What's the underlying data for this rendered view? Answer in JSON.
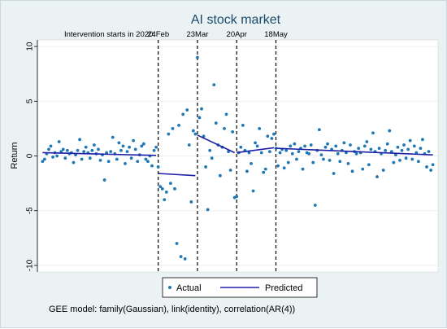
{
  "chart_data": {
    "type": "scatter",
    "title": "AI stock market",
    "xlabel": "",
    "ylabel": "Return",
    "ylim": [
      -10.6,
      10.6
    ],
    "yticks": [
      10,
      5,
      0,
      -5,
      -10
    ],
    "ytick_labels": [
      "10",
      "5",
      "0",
      "-5",
      "-10"
    ],
    "x_range": [
      1,
      190
    ],
    "annotation_prefix": "Intervention starts in 2020:",
    "interventions": [
      {
        "label": "24Feb",
        "x": 57
      },
      {
        "label": "23Mar",
        "x": 76
      },
      {
        "label": "20Apr",
        "x": 95
      },
      {
        "label": "18May",
        "x": 114
      }
    ],
    "series": [
      {
        "name": "Actual",
        "kind": "points",
        "color": "#1f77b4",
        "x": [
          1,
          2,
          3,
          4,
          5,
          6,
          7,
          8,
          9,
          10,
          11,
          12,
          13,
          14,
          15,
          16,
          17,
          18,
          19,
          20,
          21,
          22,
          23,
          24,
          25,
          26,
          27,
          28,
          29,
          30,
          31,
          32,
          33,
          34,
          35,
          36,
          37,
          38,
          39,
          40,
          41,
          42,
          43,
          44,
          45,
          46,
          47,
          48,
          49,
          50,
          51,
          52,
          53,
          54,
          55,
          56,
          57,
          58,
          59,
          60,
          61,
          62,
          63,
          64,
          65,
          66,
          67,
          68,
          69,
          70,
          71,
          72,
          73,
          74,
          75,
          76,
          77,
          78,
          79,
          80,
          81,
          82,
          83,
          84,
          85,
          86,
          87,
          88,
          89,
          90,
          91,
          92,
          93,
          94,
          95,
          96,
          97,
          98,
          99,
          100,
          101,
          102,
          103,
          104,
          105,
          106,
          107,
          108,
          109,
          110,
          111,
          112,
          113,
          114,
          115,
          116,
          117,
          118,
          119,
          120,
          121,
          122,
          123,
          124,
          125,
          126,
          127,
          128,
          129,
          130,
          131,
          132,
          133,
          134,
          135,
          136,
          137,
          138,
          139,
          140,
          141,
          142,
          143,
          144,
          145,
          146,
          147,
          148,
          149,
          150,
          151,
          152,
          153,
          154,
          155,
          156,
          157,
          158,
          159,
          160,
          161,
          162,
          163,
          164,
          165,
          166,
          167,
          168,
          169,
          170,
          171,
          172,
          173,
          174,
          175,
          176,
          177,
          178,
          179,
          180,
          181,
          182,
          183,
          184,
          185,
          186,
          187,
          188,
          189,
          190
        ],
        "y": [
          -0.5,
          -0.3,
          0.2,
          0.6,
          0.9,
          -0.1,
          0.3,
          0.0,
          1.3,
          0.4,
          0.6,
          -0.2,
          0.5,
          0.2,
          0.3,
          -0.6,
          0.1,
          0.5,
          1.5,
          -0.3,
          0.4,
          0.8,
          0.3,
          -0.2,
          0.5,
          1.0,
          0.2,
          0.6,
          -0.4,
          0.1,
          -2.2,
          0.3,
          -0.5,
          0.4,
          1.7,
          0.2,
          -0.3,
          1.2,
          0.5,
          0.9,
          -0.7,
          0.4,
          0.8,
          -0.2,
          1.4,
          0.6,
          -0.5,
          0.1,
          0.9,
          1.1,
          -0.3,
          -0.5,
          0.0,
          -0.9,
          0.5,
          0.8,
          -1.0,
          -2.8,
          -3.0,
          -4.0,
          -3.3,
          2.0,
          -2.5,
          2.5,
          -3.0,
          -8.0,
          2.8,
          -9.2,
          3.8,
          -9.4,
          4.2,
          1.0,
          -4.2,
          2.3,
          2.0,
          9.0,
          3.5,
          4.3,
          1.8,
          -1.0,
          -4.9,
          0.5,
          -0.2,
          6.5,
          3.0,
          1.0,
          -1.8,
          0.8,
          2.5,
          3.8,
          0.4,
          -1.3,
          2.2,
          -3.8,
          -3.7,
          0.3,
          0.8,
          2.8,
          0.5,
          -1.4,
          0.3,
          -0.7,
          -3.2,
          1.2,
          0.9,
          2.5,
          0.3,
          -1.5,
          -1.2,
          1.8,
          0.4,
          1.6,
          2.0,
          0.7,
          -0.9,
          0.3,
          0.6,
          -1.1,
          0.5,
          -0.6,
          0.9,
          0.2,
          1.1,
          -0.3,
          0.4,
          0.7,
          -1.2,
          0.9,
          0.3,
          0.2,
          1.0,
          -0.6,
          -4.5,
          0.5,
          2.4,
          0.1,
          -0.3,
          0.8,
          1.1,
          -0.4,
          0.6,
          -1.6,
          0.9,
          0.2,
          -0.5,
          0.5,
          1.2,
          0.3,
          -0.7,
          1.0,
          -1.4,
          0.4,
          0.2,
          0.7,
          0.3,
          -1.2,
          0.9,
          1.3,
          -0.8,
          0.6,
          2.1,
          0.4,
          -1.9,
          0.7,
          0.2,
          -1.3,
          0.5,
          1.1,
          2.3,
          0.4,
          -0.6,
          0.1,
          0.8,
          -0.4,
          0.5,
          1.0,
          -0.2,
          0.6,
          1.4,
          -0.3,
          0.9,
          0.3,
          -0.5,
          0.7,
          1.5,
          0.2,
          -1.0,
          0.4,
          -1.3,
          -0.8
        ]
      },
      {
        "name": "Predicted",
        "kind": "line",
        "color": "#1f1fa8",
        "segments": [
          {
            "x": [
              1,
              56
            ],
            "y": [
              0.3,
              0.05
            ]
          },
          {
            "x": [
              57,
              75
            ],
            "y": [
              -1.6,
              -1.8
            ]
          },
          {
            "x": [
              76,
              94
            ],
            "y": [
              1.9,
              0.3
            ]
          },
          {
            "x": [
              95,
              113
            ],
            "y": [
              0.3,
              0.75
            ]
          },
          {
            "x": [
              114,
              190
            ],
            "y": [
              0.7,
              0.1
            ]
          }
        ]
      }
    ],
    "grid": "horizontal",
    "legend_position": "bottom"
  },
  "note": "GEE model: family(Gaussian), link(identity), correlation(AR(4))"
}
